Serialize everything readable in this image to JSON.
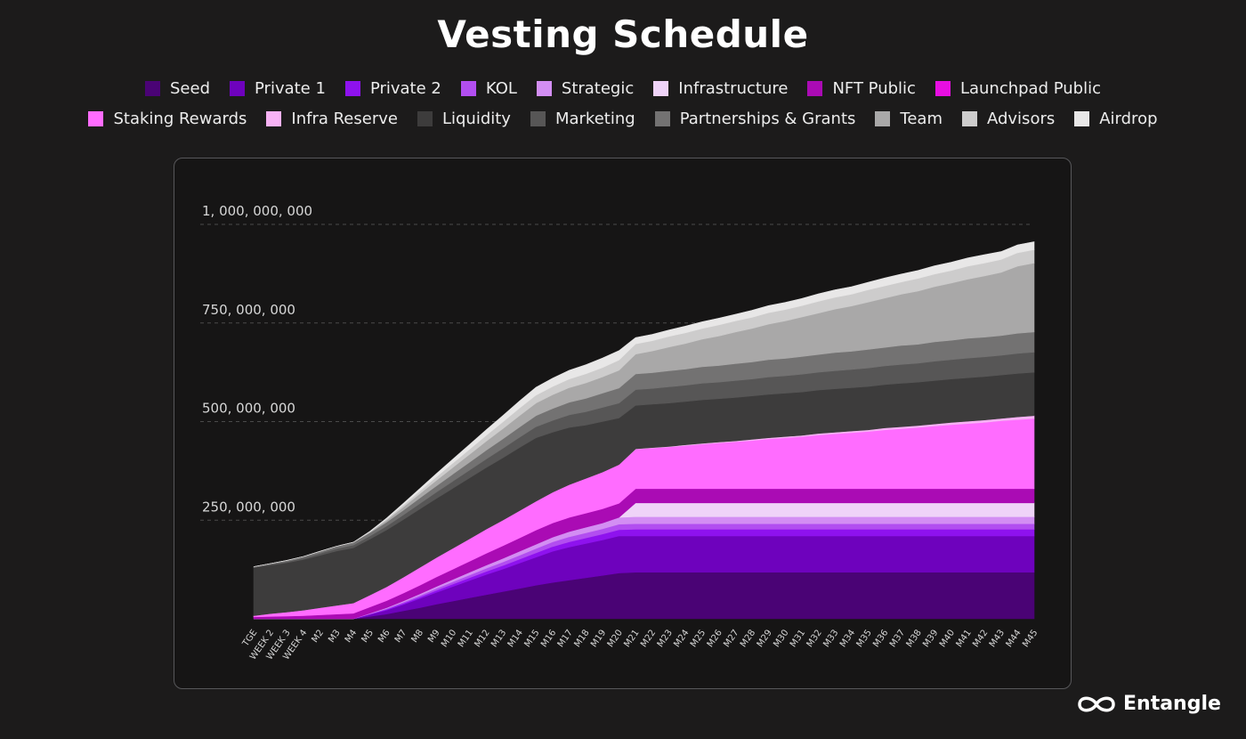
{
  "brand": "Entangle",
  "chart_data": {
    "type": "area",
    "stacked": true,
    "title": "Vesting Schedule",
    "xlabel": "",
    "ylabel": "",
    "ylim": [
      0,
      1000000000
    ],
    "yticks": [
      250000000,
      500000000,
      750000000,
      1000000000
    ],
    "ytick_labels": [
      "250, 000, 000",
      "500, 000, 000",
      "750, 000, 000",
      "1, 000, 000, 000"
    ],
    "grid": "horizontal dashed",
    "legend_position": "top",
    "categories": [
      "TGE",
      "WEEK 2",
      "WEEK 3",
      "WEEK 4",
      "M2",
      "M3",
      "M4",
      "M5",
      "M6",
      "M7",
      "M8",
      "M9",
      "M10",
      "M11",
      "M12",
      "M13",
      "M14",
      "M15",
      "M16",
      "M17",
      "M18",
      "M19",
      "M20",
      "M21",
      "M22",
      "M23",
      "M24",
      "M25",
      "M26",
      "M27",
      "M28",
      "M29",
      "M30",
      "M31",
      "M32",
      "M33",
      "M34",
      "M35",
      "M36",
      "M37",
      "M38",
      "M39",
      "M40",
      "M41",
      "M42",
      "M43",
      "M44",
      "M45"
    ],
    "series": [
      {
        "name": "Seed",
        "color": "#4a0375",
        "values": [
          0,
          0,
          0,
          0,
          0,
          0,
          0,
          6000000,
          12000000,
          20000000,
          28000000,
          37000000,
          45000000,
          53000000,
          61000000,
          69000000,
          77000000,
          85000000,
          92000000,
          98000000,
          104000000,
          110000000,
          116000000,
          118000000,
          118000000,
          118000000,
          118000000,
          118000000,
          118000000,
          118000000,
          118000000,
          118000000,
          118000000,
          118000000,
          118000000,
          118000000,
          118000000,
          118000000,
          118000000,
          118000000,
          118000000,
          118000000,
          118000000,
          118000000,
          118000000,
          118000000,
          118000000,
          118000000
        ]
      },
      {
        "name": "Private 1",
        "color": "#6e02bd",
        "values": [
          0,
          0,
          0,
          0,
          0,
          0,
          0,
          5000000,
          10000000,
          16000000,
          23000000,
          30000000,
          37000000,
          44000000,
          51000000,
          57000000,
          64000000,
          71000000,
          79000000,
          84000000,
          87000000,
          90000000,
          94000000,
          92000000,
          92000000,
          92000000,
          92000000,
          92000000,
          92000000,
          92000000,
          92000000,
          92000000,
          92000000,
          92000000,
          92000000,
          92000000,
          92000000,
          92000000,
          92000000,
          92000000,
          92000000,
          92000000,
          92000000,
          92000000,
          92000000,
          92000000,
          92000000,
          92000000
        ]
      },
      {
        "name": "Private 2",
        "color": "#8e12ee",
        "values": [
          0,
          0,
          0,
          0,
          0,
          0,
          0,
          1000000,
          2000000,
          3000000,
          4000000,
          5000000,
          6000000,
          7000000,
          8000000,
          9000000,
          10000000,
          11000000,
          12000000,
          13000000,
          14000000,
          15000000,
          16000000,
          17000000,
          17000000,
          17000000,
          17000000,
          17000000,
          17000000,
          17000000,
          17000000,
          17000000,
          17000000,
          17000000,
          17000000,
          17000000,
          17000000,
          17000000,
          17000000,
          17000000,
          17000000,
          17000000,
          17000000,
          17000000,
          17000000,
          17000000,
          17000000,
          17000000
        ]
      },
      {
        "name": "KOL",
        "color": "#b24ef0",
        "values": [
          0,
          0,
          0,
          0,
          0,
          0,
          0,
          1000000,
          2000000,
          3000000,
          4000000,
          5000000,
          6000000,
          7000000,
          8000000,
          9000000,
          10000000,
          11000000,
          12000000,
          13000000,
          13000000,
          13000000,
          14000000,
          14000000,
          14000000,
          14000000,
          14000000,
          14000000,
          14000000,
          14000000,
          14000000,
          14000000,
          14000000,
          14000000,
          14000000,
          14000000,
          14000000,
          14000000,
          14000000,
          14000000,
          14000000,
          14000000,
          14000000,
          14000000,
          14000000,
          14000000,
          14000000,
          14000000
        ]
      },
      {
        "name": "Strategic",
        "color": "#d38ef3",
        "values": [
          0,
          0,
          0,
          0,
          0,
          0,
          0,
          1000000,
          2000000,
          3000000,
          4000000,
          5000000,
          6000000,
          7000000,
          8000000,
          9000000,
          10000000,
          11000000,
          12000000,
          13000000,
          14000000,
          15000000,
          17000000,
          18000000,
          18000000,
          18000000,
          18000000,
          18000000,
          18000000,
          18000000,
          18000000,
          18000000,
          18000000,
          18000000,
          18000000,
          18000000,
          18000000,
          18000000,
          18000000,
          18000000,
          18000000,
          18000000,
          18000000,
          18000000,
          18000000,
          18000000,
          18000000,
          18000000
        ]
      },
      {
        "name": "Infrastructure",
        "color": "#efd3f8",
        "values": [
          0,
          0,
          0,
          0,
          0,
          0,
          0,
          0,
          0,
          0,
          0,
          0,
          0,
          0,
          0,
          0,
          0,
          0,
          0,
          0,
          0,
          0,
          0,
          35000000,
          35000000,
          35000000,
          35000000,
          35000000,
          35000000,
          35000000,
          35000000,
          35000000,
          35000000,
          35000000,
          35000000,
          35000000,
          35000000,
          35000000,
          35000000,
          35000000,
          35000000,
          35000000,
          35000000,
          35000000,
          35000000,
          35000000,
          35000000,
          35000000
        ]
      },
      {
        "name": "NFT Public",
        "color": "#aa0bb4",
        "values": [
          5000000,
          6000000,
          7000000,
          8000000,
          10000000,
          12000000,
          14000000,
          16000000,
          18000000,
          20000000,
          22000000,
          24000000,
          26000000,
          28000000,
          30000000,
          32000000,
          34000000,
          36000000,
          36000000,
          36000000,
          36000000,
          36000000,
          36000000,
          36000000,
          36000000,
          36000000,
          36000000,
          36000000,
          36000000,
          36000000,
          36000000,
          36000000,
          36000000,
          36000000,
          36000000,
          36000000,
          36000000,
          36000000,
          36000000,
          36000000,
          36000000,
          36000000,
          36000000,
          36000000,
          36000000,
          36000000,
          36000000,
          36000000
        ]
      },
      {
        "name": "Launchpad Public",
        "color": "#e70ee2",
        "values": [
          0,
          0,
          0,
          0,
          0,
          0,
          0,
          0,
          0,
          0,
          0,
          0,
          0,
          0,
          0,
          0,
          0,
          0,
          0,
          0,
          0,
          0,
          0,
          0,
          0,
          0,
          0,
          0,
          0,
          0,
          0,
          0,
          0,
          0,
          0,
          0,
          0,
          0,
          0,
          0,
          0,
          0,
          0,
          0,
          0,
          0,
          0,
          0
        ]
      },
      {
        "name": "Staking Rewards",
        "color": "#ff6cff",
        "values": [
          3000000,
          7000000,
          10000000,
          14000000,
          18000000,
          22000000,
          26000000,
          30000000,
          35000000,
          40000000,
          45000000,
          49000000,
          53000000,
          57000000,
          61000000,
          65000000,
          69000000,
          73000000,
          78000000,
          83000000,
          88000000,
          93000000,
          98000000,
          100000000,
          103000000,
          106000000,
          109000000,
          113000000,
          116000000,
          119000000,
          122000000,
          126000000,
          129000000,
          132000000,
          136000000,
          139000000,
          142000000,
          145000000,
          149000000,
          152000000,
          155000000,
          159000000,
          162000000,
          165000000,
          168000000,
          172000000,
          175000000,
          178000000
        ]
      },
      {
        "name": "Infra Reserve",
        "color": "#f7b2f5",
        "values": [
          0,
          0,
          0,
          0,
          0,
          0,
          0,
          0,
          0,
          0,
          0,
          0,
          0,
          0,
          0,
          0,
          0,
          0,
          0,
          0,
          0,
          0,
          0,
          1000000,
          1000000,
          1000000,
          2000000,
          2000000,
          2000000,
          2000000,
          3000000,
          3000000,
          3000000,
          3000000,
          4000000,
          4000000,
          4000000,
          4000000,
          5000000,
          5000000,
          5000000,
          5000000,
          6000000,
          6000000,
          6000000,
          6000000,
          7000000,
          7000000
        ]
      },
      {
        "name": "Liquidity",
        "color": "#3d3c3c",
        "values": [
          122000000,
          123000000,
          125000000,
          128000000,
          133000000,
          138000000,
          140000000,
          142000000,
          144000000,
          146000000,
          148000000,
          150000000,
          152000000,
          154000000,
          156000000,
          158000000,
          160000000,
          161000000,
          152000000,
          145000000,
          135000000,
          128000000,
          118000000,
          110000000,
          110000000,
          110000000,
          110000000,
          110000000,
          110000000,
          110000000,
          110000000,
          110000000,
          110000000,
          110000000,
          110000000,
          110000000,
          110000000,
          110000000,
          110000000,
          110000000,
          110000000,
          110000000,
          110000000,
          110000000,
          110000000,
          110000000,
          110000000,
          110000000
        ]
      },
      {
        "name": "Marketing",
        "color": "#575656",
        "values": [
          1000000,
          2000000,
          3000000,
          4000000,
          5000000,
          6000000,
          7000000,
          8000000,
          10000000,
          12000000,
          14000000,
          16000000,
          18000000,
          20000000,
          22000000,
          24000000,
          26000000,
          28000000,
          30000000,
          32000000,
          34000000,
          36000000,
          38000000,
          40000000,
          40000000,
          41000000,
          41000000,
          42000000,
          42000000,
          43000000,
          43000000,
          44000000,
          44000000,
          45000000,
          45000000,
          46000000,
          46000000,
          47000000,
          47000000,
          48000000,
          48000000,
          49000000,
          49000000,
          50000000,
          50000000,
          50000000,
          51000000,
          51000000
        ]
      },
      {
        "name": "Partnerships & Grants",
        "color": "#737272",
        "values": [
          1000000,
          2000000,
          3000000,
          4000000,
          5000000,
          6000000,
          7000000,
          8000000,
          10000000,
          12000000,
          14000000,
          16000000,
          18000000,
          20000000,
          22000000,
          24000000,
          26000000,
          28000000,
          30000000,
          32000000,
          34000000,
          36000000,
          38000000,
          40000000,
          40000000,
          41000000,
          41000000,
          42000000,
          42000000,
          43000000,
          43000000,
          44000000,
          44000000,
          45000000,
          45000000,
          46000000,
          46000000,
          47000000,
          47000000,
          48000000,
          48000000,
          49000000,
          49000000,
          50000000,
          50000000,
          50000000,
          51000000,
          51000000
        ]
      },
      {
        "name": "Team",
        "color": "#a9a8a8",
        "values": [
          0,
          0,
          0,
          0,
          0,
          0,
          0,
          2000000,
          5000000,
          8000000,
          11000000,
          14000000,
          17000000,
          20000000,
          23000000,
          26000000,
          29000000,
          32000000,
          35000000,
          37000000,
          39000000,
          41000000,
          45000000,
          50000000,
          55000000,
          60000000,
          65000000,
          70000000,
          75000000,
          80000000,
          85000000,
          90000000,
          95000000,
          100000000,
          105000000,
          110000000,
          115000000,
          120000000,
          125000000,
          130000000,
          135000000,
          140000000,
          145000000,
          150000000,
          155000000,
          160000000,
          170000000,
          175000000
        ]
      },
      {
        "name": "Advisors",
        "color": "#cdcccc",
        "values": [
          0,
          0,
          0,
          0,
          0,
          0,
          0,
          1000000,
          3000000,
          5000000,
          7000000,
          9000000,
          11000000,
          13000000,
          15000000,
          17000000,
          19000000,
          20000000,
          21000000,
          22000000,
          23000000,
          24000000,
          26000000,
          26000000,
          26000000,
          27000000,
          27000000,
          27000000,
          28000000,
          28000000,
          28000000,
          29000000,
          29000000,
          29000000,
          30000000,
          30000000,
          30000000,
          31000000,
          31000000,
          31000000,
          32000000,
          32000000,
          32000000,
          33000000,
          33000000,
          33000000,
          34000000,
          34000000
        ]
      },
      {
        "name": "Airdrop",
        "color": "#e8e7e7",
        "values": [
          0,
          0,
          0,
          0,
          0,
          0,
          0,
          1000000,
          2000000,
          4000000,
          6000000,
          8000000,
          10000000,
          12000000,
          14000000,
          16000000,
          18000000,
          20000000,
          21000000,
          22000000,
          23000000,
          24000000,
          24000000,
          16000000,
          16000000,
          16000000,
          17000000,
          17000000,
          17000000,
          17000000,
          18000000,
          18000000,
          18000000,
          18000000,
          19000000,
          19000000,
          19000000,
          19000000,
          20000000,
          20000000,
          20000000,
          21000000,
          21000000,
          21000000,
          21000000,
          20000000,
          20000000,
          20000000
        ]
      }
    ]
  }
}
